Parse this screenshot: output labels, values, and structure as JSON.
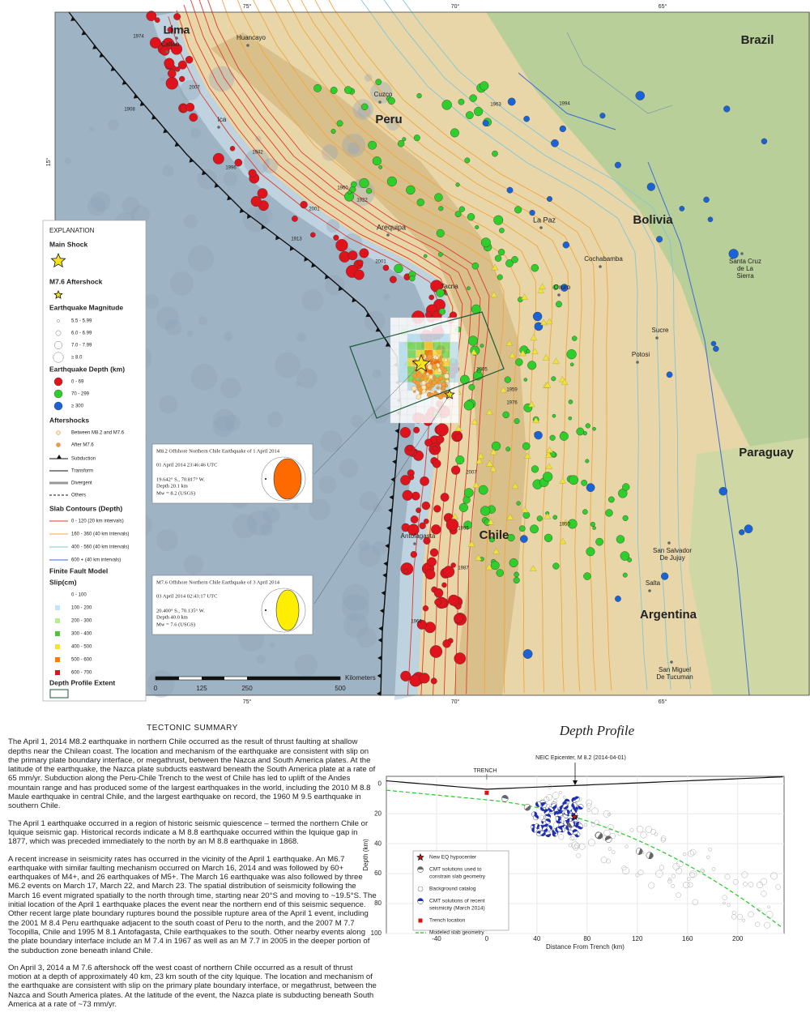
{
  "map": {
    "lon_labels": [
      "75°",
      "70°",
      "65°"
    ],
    "lat_labels": [
      "15°"
    ],
    "countries": [
      "Brazil",
      "Peru",
      "Bolivia",
      "Paraguay",
      "Chile",
      "Argentina"
    ],
    "cities": [
      [
        "Lima"
      ],
      [
        "Callao"
      ],
      [
        "Huancayo"
      ],
      [
        "Cuzco"
      ],
      [
        "Ica"
      ],
      [
        "Arequipa"
      ],
      [
        "Tacna"
      ],
      [
        "La Paz"
      ],
      [
        "Cochabamba"
      ],
      [
        "Oruro"
      ],
      [
        "Santa Cruz",
        "de La",
        "Sierra"
      ],
      [
        "Sucre"
      ],
      [
        "Potosi"
      ],
      [
        "Antofagasta"
      ],
      [
        "San Salvador",
        "De Jujuy"
      ],
      [
        "Salta"
      ],
      [
        "San Miguel",
        "De Tucuman"
      ]
    ],
    "years": [
      "1974",
      "2007",
      "1908",
      "1942",
      "1996",
      "1960",
      "1922",
      "2001",
      "1913",
      "2001",
      "2005",
      "1959",
      "1976",
      "2007",
      "1995",
      "1950",
      "1987",
      "1966",
      "1963",
      "1994"
    ]
  },
  "legend": {
    "title": "EXPLANATION",
    "main_shock": "Main Shock",
    "aftershock": "M7.6 Aftershock",
    "magnitude_title": "Earthquake Magnitude",
    "magnitudes": [
      "5.5 - 5.99",
      "6.0 - 6.99",
      "7.0 - 7.99",
      "≥ 8.0"
    ],
    "depth_title": "Earthquake Depth (km)",
    "depths": [
      "0 - 69",
      "70 - 299",
      "≥ 300"
    ],
    "aftershocks_title": "Aftershocks",
    "aftershocks": [
      "Between M8.2 and M7.6",
      "After M7.6"
    ],
    "boundaries": [
      "Subduction",
      "Transform",
      "Divergent",
      "Others"
    ],
    "slab_title": "Slab Contours (Depth)",
    "slab": [
      "0 - 120 (20 km intervals)",
      "160 - 360 (40 km intervals)",
      "400 - 560 (40 km intervals)",
      "600 + (40 km intervals)"
    ],
    "fault_title": "Finite Fault Model",
    "slip_title": "Slip(cm)",
    "slip": [
      "0 - 100",
      "100 - 200",
      "200 - 300",
      "300 - 400",
      "400 - 500",
      "500 - 600",
      "600 - 700"
    ],
    "extent": "Depth Profile Extent"
  },
  "insets": [
    {
      "title": "M8.2 Offshore Northern Chile Earthquake of 1 April 2014",
      "time": "01 April 2014 23:46:46 UTC",
      "location": "19.642° S., 70.817° W.",
      "depth": "Depth 20.1 km",
      "magnitude": "Mw = 8.2 (USGS)"
    },
    {
      "title": "M7.6 Offshore Northern Chile Earthquake of 3 April 2014",
      "time": "03 April 2014 02:43:17 UTC",
      "location": "20.400° S., 70.135° W.",
      "depth": "Depth 40.0 km",
      "magnitude": "Mw = 7.6 (USGS)"
    }
  ],
  "scale_bar": {
    "labels": [
      "0",
      "125",
      "250",
      "500"
    ],
    "unit": "Kilometers"
  },
  "summary": {
    "title": "TECTONIC SUMMARY",
    "paragraphs": [
      "The April 1, 2014 M8.2 earthquake in northern Chile occurred as the result of thrust faulting at shallow depths near the Chilean coast. The location and mechanism of the earthquake are consistent with slip on the primary plate boundary interface, or megathrust, between the Nazca and South America plates. At the latitude of the earthquake, the Nazca plate subducts eastward beneath the South America plate at a rate of 65 mm/yr. Subduction along the Peru-Chile Trench to the west of Chile has led to uplift of the Andes mountain range and has produced some of the largest earthquakes in the world, including the 2010 M 8.8 Maule earthquake in central Chile, and the largest earthquake on record, the 1960 M 9.5 earthquake in southern Chile.",
      "The April 1 earthquake occurred in a region of historic seismic quiescence – termed the northern Chile or Iquique seismic gap. Historical records indicate a M 8.8 earthquake occurred within the Iquique gap in 1877, which was preceded immediately to the north by an M 8.8 earthquake in 1868.",
      "A recent increase in seismicity rates has occurred in the vicinity of the April 1 earthquake. An M6.7 earthquake with similar faulting mechanism occurred on March 16, 2014 and was followed by 60+ earthquakes of M4+, and 26 earthquakes of M5+. The March 16 earthquake was also followed by three M6.2 events on March 17, March 22, and March 23. The spatial distribution of seismicity following the March 16 event migrated spatially to the north through time, starting near 20°S and moving to ~19.5°S. The initial location of the April 1 earthquake places the event near the northern end of this seismic sequence. Other recent large plate boundary ruptures bound the possible rupture area of the April 1 event, including the 2001 M 8.4 Peru earthquake adjacent to the south coast of Peru to the north, and the 2007 M 7.7 Tocopilla, Chile and 1995 M 8.1 Antofagasta, Chile earthquakes to the south. Other nearby events along the plate boundary interface include an M 7.4 in 1967 as well as an M 7.7 in 2005 in the deeper portion of the subduction zone beneath inland Chile.",
      "On April 3, 2014 a M 7.6 aftershock off the west coast of northern Chile occurred as a result of thrust motion at a depth of approximately 40 km, 23 km south of the city Iquique. The location and mechanism of the earthquake are consistent with slip on the primary plate boundary interface, or megathrust, between the Nazca and South America plates. At the latitude of the event, the Nazca plate is subducting beneath South America at a rate of ~73 mm/yr."
    ]
  },
  "depth_profile": {
    "type": "scatter",
    "title": "Depth Profile",
    "trench_label": "TRENCH",
    "epicenter_label": "NEIC Epicenter, M 8.2 (2014-04-01)",
    "x_label": "Distance From Trench (km)",
    "y_label": "Depth (km)",
    "xlim": [
      -80,
      237
    ],
    "ylim": [
      -5,
      100
    ],
    "xticks": [
      -40,
      0,
      40,
      80,
      120,
      160,
      200
    ],
    "yticks": [
      0,
      20,
      40,
      60,
      80,
      100
    ],
    "legend": [
      [
        "New EQ hypocenter"
      ],
      [
        "CMT solutions used to",
        "constrain slab geometry"
      ],
      [
        "Background catalog"
      ],
      [
        "CMT solutions of recent",
        "seismicity (March 2014)"
      ],
      [
        "Trench location"
      ],
      [
        "Modeled slab geometry"
      ]
    ]
  }
}
